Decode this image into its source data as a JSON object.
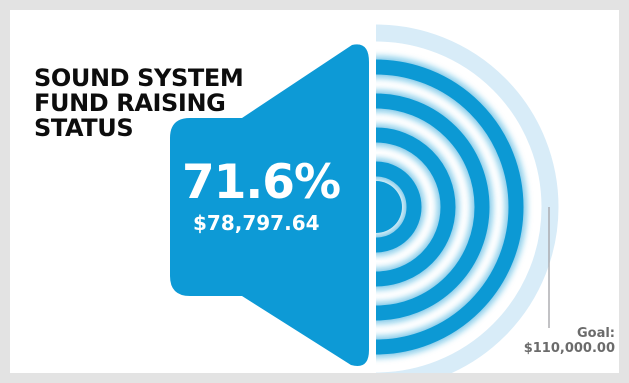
{
  "header": {
    "title_lines": [
      "SOUND SYSTEM",
      "FUND RAISING",
      "STATUS"
    ]
  },
  "progress": {
    "percent_label": "71.6%",
    "raised_label": "$78,797.64",
    "goal_title": "Goal:",
    "goal_label": "$110,000.00"
  },
  "chart_data": {
    "type": "gauge",
    "raised": 78797.64,
    "goal": 110000.0,
    "percent": 71.6,
    "rings_total": 5,
    "rings_filled": 4
  },
  "colors": {
    "speaker": "#0d9ad6",
    "ring_filled": "#0c99d4",
    "ring_unfilled": "#d8ecf8",
    "goal_line": "#a7a9ac",
    "text_dark": "#0d0d0d",
    "text_goal": "#6b6b6b"
  }
}
